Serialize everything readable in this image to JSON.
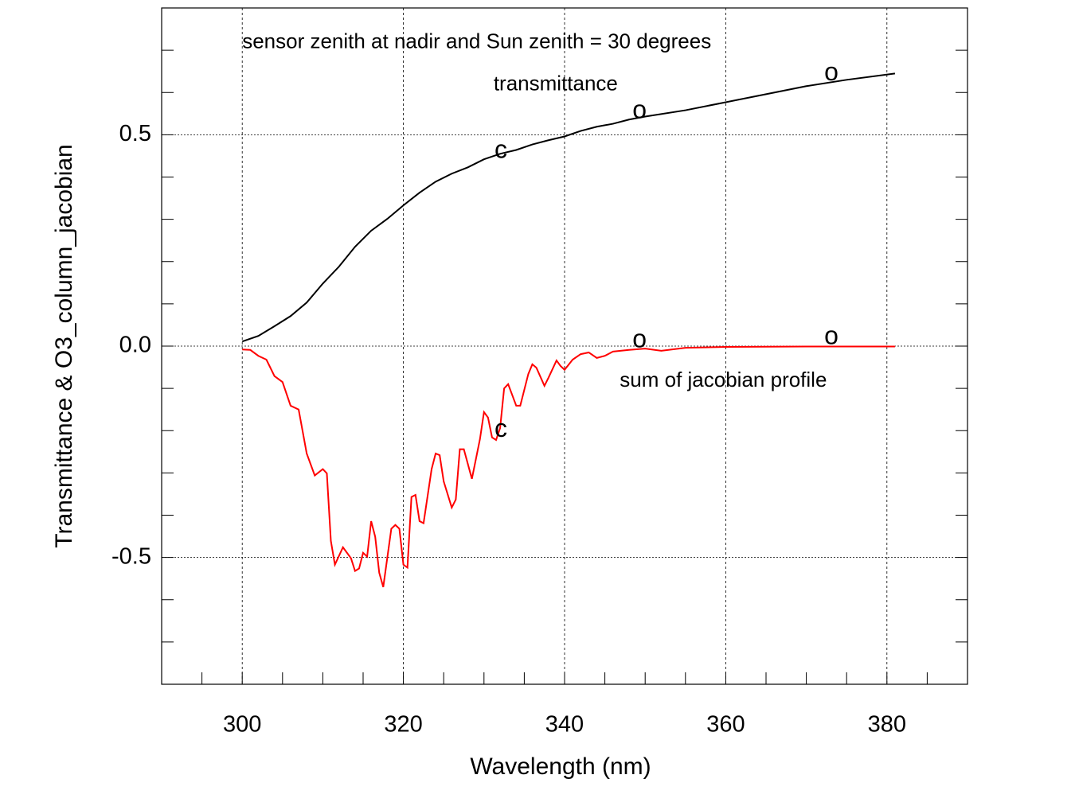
{
  "chart_data": {
    "type": "line",
    "xlabel": "Wavelength (nm)",
    "ylabel": "Transmittance & O3_column_jacobian",
    "xlim": [
      290,
      390
    ],
    "ylim": [
      -0.8,
      0.8
    ],
    "xticks": [
      300,
      320,
      340,
      360,
      380
    ],
    "yticks": [
      {
        "value": -0.5,
        "label": "-0.5"
      },
      {
        "value": 0,
        "label": "0.0"
      },
      {
        "value": 0.5,
        "label": "0.5"
      }
    ],
    "xminorticks": [
      295,
      305,
      310,
      315,
      325,
      330,
      335,
      345,
      350,
      355,
      365,
      370,
      375,
      385
    ],
    "yminorticks": [
      -0.7,
      -0.6,
      -0.4,
      -0.3,
      -0.2,
      -0.1,
      0.1,
      0.2,
      0.3,
      0.4,
      0.6,
      0.7
    ],
    "grid": true,
    "series": [
      {
        "color": "#000000",
        "x": [
          300,
          302,
          304,
          306,
          308,
          310,
          312,
          314,
          316,
          318,
          320,
          322,
          324,
          326,
          328,
          330,
          332,
          334,
          336,
          338,
          340,
          342,
          344,
          346,
          348,
          350,
          355,
          360,
          365,
          370,
          375,
          381
        ],
        "values": [
          0.011,
          0.024,
          0.047,
          0.071,
          0.103,
          0.148,
          0.188,
          0.235,
          0.273,
          0.301,
          0.333,
          0.363,
          0.389,
          0.408,
          0.423,
          0.442,
          0.455,
          0.464,
          0.477,
          0.487,
          0.496,
          0.509,
          0.519,
          0.526,
          0.536,
          0.543,
          0.558,
          0.577,
          0.596,
          0.615,
          0.63,
          0.645
        ]
      },
      {
        "color": "#ff0000",
        "x": [
          300,
          301,
          302,
          303,
          304,
          305,
          306,
          307,
          308,
          309,
          310,
          310.5,
          311,
          311.5,
          312.5,
          313.5,
          314,
          314.5,
          315,
          315.5,
          316,
          316.5,
          317,
          317.5,
          318.5,
          319,
          319.5,
          320,
          320.5,
          321,
          321.5,
          322,
          322.5,
          323.5,
          324,
          324.5,
          325,
          326,
          326.5,
          327,
          327.5,
          328.5,
          329.5,
          330,
          330.5,
          331,
          331.5,
          332,
          332.5,
          333,
          334,
          334.5,
          335.5,
          336,
          336.5,
          337.5,
          338,
          339,
          339.5,
          340,
          341,
          342,
          343,
          344,
          345,
          346,
          348,
          350,
          352,
          355,
          360,
          370,
          381
        ],
        "values": [
          -0.008,
          -0.009,
          -0.023,
          -0.032,
          -0.071,
          -0.085,
          -0.141,
          -0.15,
          -0.254,
          -0.306,
          -0.291,
          -0.301,
          -0.461,
          -0.517,
          -0.476,
          -0.502,
          -0.532,
          -0.526,
          -0.489,
          -0.498,
          -0.414,
          -0.451,
          -0.536,
          -0.57,
          -0.432,
          -0.423,
          -0.432,
          -0.517,
          -0.524,
          -0.357,
          -0.352,
          -0.414,
          -0.419,
          -0.291,
          -0.254,
          -0.258,
          -0.32,
          -0.382,
          -0.363,
          -0.244,
          -0.244,
          -0.314,
          -0.22,
          -0.156,
          -0.169,
          -0.216,
          -0.222,
          -0.194,
          -0.1,
          -0.09,
          -0.141,
          -0.141,
          -0.066,
          -0.043,
          -0.051,
          -0.094,
          -0.075,
          -0.034,
          -0.047,
          -0.056,
          -0.032,
          -0.019,
          -0.015,
          -0.028,
          -0.023,
          -0.013,
          -0.009,
          -0.006,
          -0.011,
          -0.004,
          -0.002,
          -0.001,
          -0.001
        ]
      }
    ],
    "title": {
      "text": "sensor zenith at nadir and Sun zenith = 30 degrees",
      "x": 300,
      "y": 0.718,
      "color": "#000000"
    },
    "annotations": [
      {
        "text": "transmittance",
        "x": 338.9,
        "y": 0.618,
        "color": "#000000"
      },
      {
        "text": "sum of jacobian profile",
        "x": 359.7,
        "y": -0.083,
        "color": "#ff0000"
      },
      {
        "text": "c",
        "x": 332.1,
        "y": 0.461,
        "color": "#000000"
      },
      {
        "text": "c",
        "x": 332.1,
        "y": -0.199,
        "color": "#000000"
      },
      {
        "text": "o",
        "x": 349.3,
        "y": 0.555,
        "color": "#ff0000"
      },
      {
        "text": "o",
        "x": 349.3,
        "y": 0.013,
        "color": "#ff0000"
      },
      {
        "text": "o",
        "x": 373.1,
        "y": 0.645,
        "color": "#0000ff"
      },
      {
        "text": "o",
        "x": 373.1,
        "y": 0.021,
        "color": "#0000ff"
      }
    ]
  }
}
